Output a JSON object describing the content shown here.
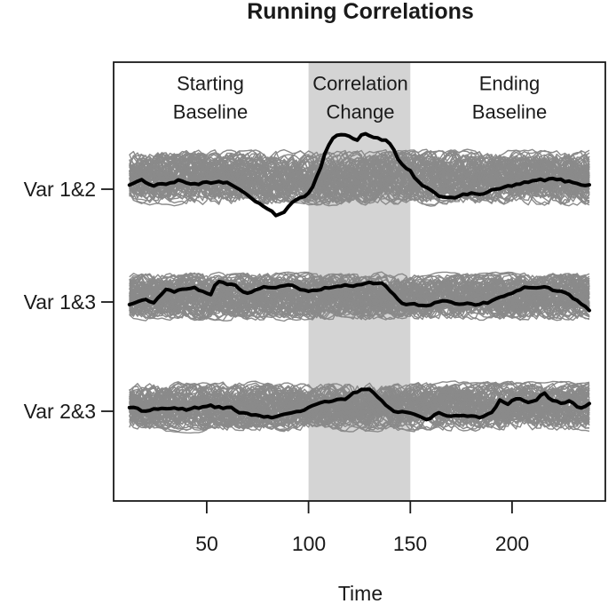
{
  "title": "Running Correlations",
  "axis": {
    "x_label": "Time",
    "x_ticks": [
      "50",
      "100",
      "150",
      "200"
    ],
    "y_labels": [
      "Var 1&2",
      "Var 1&3",
      "Var 2&3"
    ]
  },
  "regions": [
    {
      "lines": [
        "Starting",
        "Baseline"
      ]
    },
    {
      "lines": [
        "Correlation",
        "Change"
      ]
    },
    {
      "lines": [
        "Ending",
        "Baseline"
      ]
    }
  ],
  "colors": {
    "observed_line": "#000000",
    "ensemble_line": "#8a8a8a",
    "shading": "#d4d4d4",
    "frame": "#1a1a1a",
    "background": "#ffffff"
  },
  "chart_data": {
    "type": "line",
    "title": "Running Correlations",
    "xlabel": "Time",
    "ylabel": "",
    "x_ticks": [
      50,
      100,
      150,
      200
    ],
    "x_range": [
      12,
      238
    ],
    "grid": false,
    "legend": "none",
    "shaded_region": {
      "label": "Correlation Change",
      "x_from": 100,
      "x_to": 150
    },
    "phases": [
      {
        "label": "Starting Baseline",
        "x_from": 12,
        "x_to": 100
      },
      {
        "label": "Correlation Change",
        "x_from": 100,
        "x_to": 150
      },
      {
        "label": "Ending Baseline",
        "x_from": 150,
        "x_to": 238
      }
    ],
    "value_unit": "running correlation shown as offset from each variable pair's baseline, in units of the null-band half-width (no numeric y axis is displayed)",
    "null_ensemble": {
      "role": "simulated null running correlations forming the gray band behind each observed line",
      "lines_per_band": 70,
      "value_span": [
        -1.1,
        1.1
      ]
    },
    "series": [
      {
        "name": "Var 1&2",
        "role": "observed",
        "points": [
          [
            12,
            -0.23
          ],
          [
            18,
            -0.15
          ],
          [
            24,
            -0.25
          ],
          [
            30,
            -0.2
          ],
          [
            36,
            -0.12
          ],
          [
            42,
            -0.22
          ],
          [
            48,
            -0.2
          ],
          [
            54,
            -0.25
          ],
          [
            61,
            -0.2
          ],
          [
            66,
            -0.45
          ],
          [
            70,
            -0.73
          ],
          [
            77,
            -1.0
          ],
          [
            81,
            -1.25
          ],
          [
            84,
            -1.45
          ],
          [
            87,
            -1.33
          ],
          [
            91,
            -1.0
          ],
          [
            95,
            -0.87
          ],
          [
            99,
            -0.65
          ],
          [
            102,
            -0.3
          ],
          [
            105,
            0.2
          ],
          [
            108,
            0.9
          ],
          [
            111,
            1.45
          ],
          [
            114,
            1.6
          ],
          [
            118,
            1.63
          ],
          [
            121,
            1.5
          ],
          [
            124,
            1.42
          ],
          [
            127,
            1.65
          ],
          [
            130,
            1.6
          ],
          [
            133,
            1.52
          ],
          [
            136,
            1.45
          ],
          [
            139,
            1.35
          ],
          [
            142,
            1.0
          ],
          [
            145,
            0.5
          ],
          [
            148,
            0.3
          ],
          [
            150,
            0.2
          ],
          [
            153,
            -0.1
          ],
          [
            156,
            -0.33
          ],
          [
            161,
            -0.6
          ],
          [
            166,
            -0.73
          ],
          [
            171,
            -0.7
          ],
          [
            175,
            -0.67
          ],
          [
            180,
            -0.63
          ],
          [
            184,
            -0.6
          ],
          [
            190,
            -0.5
          ],
          [
            197,
            -0.37
          ],
          [
            203,
            -0.27
          ],
          [
            210,
            -0.17
          ],
          [
            216,
            -0.1
          ],
          [
            220,
            -0.07
          ],
          [
            224,
            -0.12
          ],
          [
            228,
            -0.17
          ],
          [
            233,
            -0.2
          ],
          [
            238,
            -0.27
          ]
        ]
      },
      {
        "name": "Var 1&3",
        "role": "observed",
        "points": [
          [
            12,
            -0.31
          ],
          [
            16,
            -0.15
          ],
          [
            20,
            -0.15
          ],
          [
            24,
            -0.28
          ],
          [
            28,
            0.1
          ],
          [
            30,
            0.35
          ],
          [
            34,
            0.2
          ],
          [
            38,
            0.3
          ],
          [
            44,
            0.46
          ],
          [
            48,
            0.25
          ],
          [
            52,
            0.15
          ],
          [
            55,
            0.73
          ],
          [
            58,
            0.65
          ],
          [
            62,
            0.55
          ],
          [
            66,
            0.35
          ],
          [
            70,
            0.15
          ],
          [
            74,
            0.35
          ],
          [
            78,
            0.4
          ],
          [
            83,
            0.35
          ],
          [
            87,
            0.42
          ],
          [
            91,
            0.46
          ],
          [
            95,
            0.3
          ],
          [
            100,
            0.15
          ],
          [
            104,
            0.25
          ],
          [
            109,
            0.35
          ],
          [
            113,
            0.4
          ],
          [
            118,
            0.46
          ],
          [
            122,
            0.5
          ],
          [
            126,
            0.54
          ],
          [
            131,
            0.62
          ],
          [
            136,
            0.54
          ],
          [
            140,
            0.23
          ],
          [
            143,
            -0.05
          ],
          [
            145,
            -0.23
          ],
          [
            149,
            -0.35
          ],
          [
            153,
            -0.38
          ],
          [
            158,
            -0.42
          ],
          [
            162,
            -0.3
          ],
          [
            166,
            -0.15
          ],
          [
            170,
            -0.25
          ],
          [
            175,
            -0.31
          ],
          [
            180,
            -0.33
          ],
          [
            184,
            -0.35
          ],
          [
            189,
            -0.25
          ],
          [
            193,
            -0.15
          ],
          [
            197,
            0.0
          ],
          [
            201,
            0.15
          ],
          [
            206,
            0.35
          ],
          [
            210,
            0.42
          ],
          [
            215,
            0.46
          ],
          [
            219,
            0.35
          ],
          [
            224,
            0.2
          ],
          [
            228,
            0.08
          ],
          [
            232,
            -0.15
          ],
          [
            235,
            -0.35
          ],
          [
            238,
            -0.62
          ]
        ]
      },
      {
        "name": "Var 2&3",
        "role": "observed",
        "points": [
          [
            12,
            0.0
          ],
          [
            19,
            -0.19
          ],
          [
            24,
            -0.1
          ],
          [
            29,
            0.0
          ],
          [
            34,
            -0.08
          ],
          [
            40,
            -0.15
          ],
          [
            46,
            -0.05
          ],
          [
            52,
            0.0
          ],
          [
            57,
            -0.04
          ],
          [
            62,
            -0.08
          ],
          [
            68,
            -0.25
          ],
          [
            74,
            -0.38
          ],
          [
            79,
            -0.44
          ],
          [
            83,
            -0.46
          ],
          [
            88,
            -0.27
          ],
          [
            93,
            -0.2
          ],
          [
            97,
            -0.15
          ],
          [
            102,
            0.0
          ],
          [
            106,
            0.12
          ],
          [
            112,
            0.22
          ],
          [
            118,
            0.31
          ],
          [
            122,
            0.6
          ],
          [
            126,
            0.7
          ],
          [
            130,
            0.65
          ],
          [
            134,
            0.4
          ],
          [
            137,
            0.12
          ],
          [
            140,
            -0.05
          ],
          [
            143,
            -0.19
          ],
          [
            148,
            -0.25
          ],
          [
            152,
            -0.27
          ],
          [
            158,
            -0.58
          ],
          [
            163,
            -0.27
          ],
          [
            167,
            -0.4
          ],
          [
            170,
            -0.46
          ],
          [
            174,
            -0.4
          ],
          [
            178,
            -0.38
          ],
          [
            181,
            -0.42
          ],
          [
            184,
            -0.46
          ],
          [
            188,
            -0.3
          ],
          [
            191,
            -0.15
          ],
          [
            194,
            0.31
          ],
          [
            198,
            0.12
          ],
          [
            203,
            0.38
          ],
          [
            207,
            0.23
          ],
          [
            211,
            0.31
          ],
          [
            216,
            0.58
          ],
          [
            220,
            0.23
          ],
          [
            224,
            0.12
          ],
          [
            229,
            0.23
          ],
          [
            233,
            0.0
          ],
          [
            236,
            0.12
          ],
          [
            238,
            0.23
          ]
        ]
      }
    ]
  }
}
